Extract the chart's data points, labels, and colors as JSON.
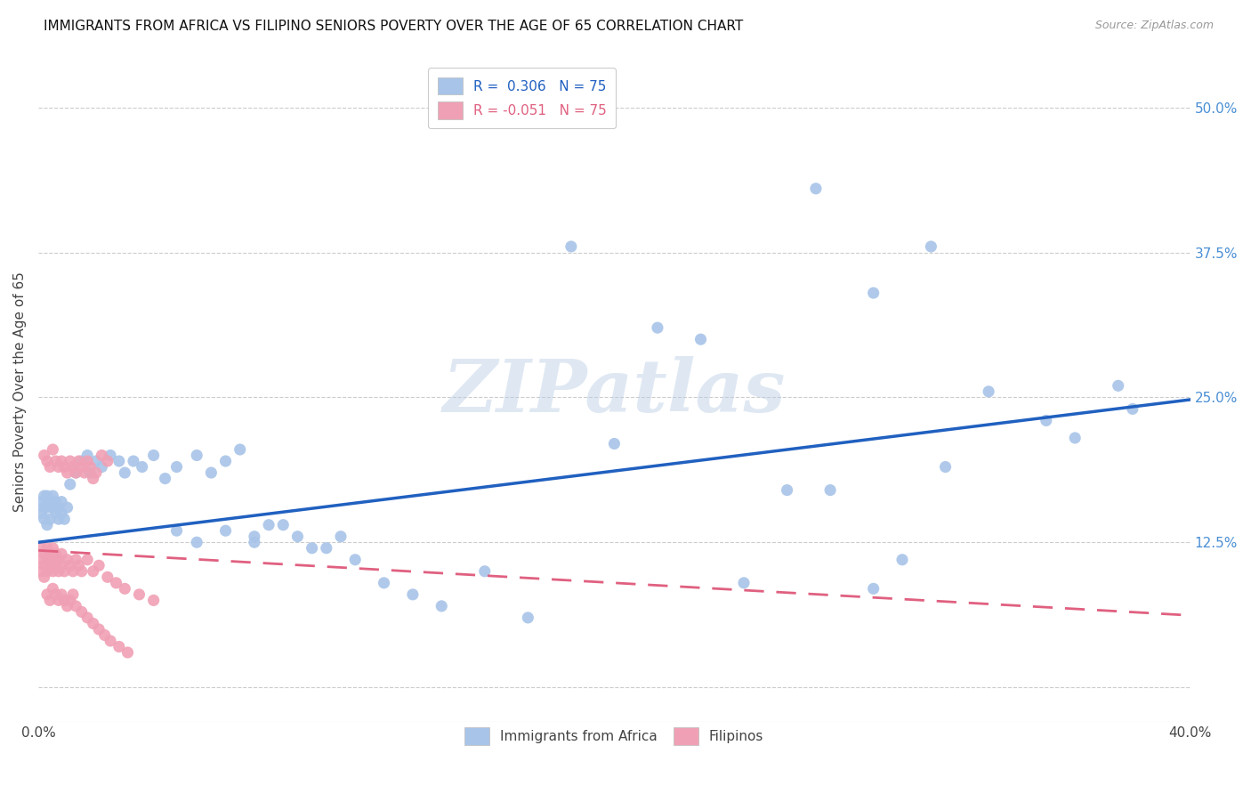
{
  "title": "IMMIGRANTS FROM AFRICA VS FILIPINO SENIORS POVERTY OVER THE AGE OF 65 CORRELATION CHART",
  "source": "Source: ZipAtlas.com",
  "ylabel": "Seniors Poverty Over the Age of 65",
  "xlim": [
    0.0,
    0.4
  ],
  "ylim": [
    -0.03,
    0.54
  ],
  "ytick_vals": [
    0.0,
    0.125,
    0.25,
    0.375,
    0.5
  ],
  "ytick_labels": [
    "",
    "12.5%",
    "25.0%",
    "37.5%",
    "50.0%"
  ],
  "xtick_vals": [
    0.0,
    0.05,
    0.1,
    0.15,
    0.2,
    0.25,
    0.3,
    0.35,
    0.4
  ],
  "xtick_labels": [
    "0.0%",
    "",
    "",
    "",
    "",
    "",
    "",
    "",
    "40.0%"
  ],
  "legend_r_africa": "R =  0.306",
  "legend_n_africa": "N = 75",
  "legend_r_filipino": "R = -0.051",
  "legend_n_filipino": "N = 75",
  "africa_color": "#a8c4e8",
  "filipino_color": "#f0a0b4",
  "africa_line_color": "#2060c0",
  "filipino_line_color": "#e06080",
  "watermark": "ZIPatlas",
  "africa_line_x": [
    0.0,
    0.4
  ],
  "africa_line_y": [
    0.125,
    0.248
  ],
  "filipino_line_x": [
    0.0,
    0.4
  ],
  "filipino_line_y": [
    0.118,
    0.062
  ],
  "africa_x": [
    0.001,
    0.001,
    0.002,
    0.002,
    0.002,
    0.003,
    0.003,
    0.003,
    0.004,
    0.004,
    0.005,
    0.005,
    0.006,
    0.006,
    0.007,
    0.007,
    0.008,
    0.008,
    0.009,
    0.01,
    0.011,
    0.012,
    0.013,
    0.015,
    0.017,
    0.018,
    0.02,
    0.022,
    0.025,
    0.028,
    0.03,
    0.033,
    0.036,
    0.04,
    0.044,
    0.048,
    0.055,
    0.06,
    0.065,
    0.07,
    0.075,
    0.08,
    0.09,
    0.1,
    0.11,
    0.12,
    0.13,
    0.14,
    0.155,
    0.17,
    0.185,
    0.2,
    0.215,
    0.23,
    0.245,
    0.26,
    0.275,
    0.29,
    0.3,
    0.315,
    0.27,
    0.29,
    0.31,
    0.33,
    0.35,
    0.36,
    0.375,
    0.38,
    0.048,
    0.055,
    0.065,
    0.075,
    0.085,
    0.095,
    0.105
  ],
  "africa_y": [
    0.15,
    0.16,
    0.145,
    0.155,
    0.165,
    0.14,
    0.155,
    0.165,
    0.145,
    0.16,
    0.155,
    0.165,
    0.15,
    0.16,
    0.145,
    0.155,
    0.15,
    0.16,
    0.145,
    0.155,
    0.175,
    0.19,
    0.185,
    0.195,
    0.2,
    0.185,
    0.195,
    0.19,
    0.2,
    0.195,
    0.185,
    0.195,
    0.19,
    0.2,
    0.18,
    0.19,
    0.2,
    0.185,
    0.195,
    0.205,
    0.13,
    0.14,
    0.13,
    0.12,
    0.11,
    0.09,
    0.08,
    0.07,
    0.1,
    0.06,
    0.38,
    0.21,
    0.31,
    0.3,
    0.09,
    0.17,
    0.17,
    0.085,
    0.11,
    0.19,
    0.43,
    0.34,
    0.38,
    0.255,
    0.23,
    0.215,
    0.26,
    0.24,
    0.135,
    0.125,
    0.135,
    0.125,
    0.14,
    0.12,
    0.13
  ],
  "filipino_x": [
    0.001,
    0.001,
    0.001,
    0.002,
    0.002,
    0.002,
    0.003,
    0.003,
    0.003,
    0.004,
    0.004,
    0.005,
    0.005,
    0.005,
    0.006,
    0.006,
    0.007,
    0.007,
    0.008,
    0.008,
    0.009,
    0.01,
    0.011,
    0.012,
    0.013,
    0.014,
    0.015,
    0.017,
    0.019,
    0.021,
    0.024,
    0.027,
    0.03,
    0.035,
    0.04,
    0.002,
    0.003,
    0.004,
    0.005,
    0.006,
    0.007,
    0.008,
    0.009,
    0.01,
    0.011,
    0.012,
    0.013,
    0.014,
    0.015,
    0.016,
    0.017,
    0.018,
    0.019,
    0.02,
    0.022,
    0.024,
    0.003,
    0.004,
    0.005,
    0.006,
    0.007,
    0.008,
    0.009,
    0.01,
    0.011,
    0.012,
    0.013,
    0.015,
    0.017,
    0.019,
    0.021,
    0.023,
    0.025,
    0.028,
    0.031
  ],
  "filipino_y": [
    0.11,
    0.1,
    0.12,
    0.105,
    0.115,
    0.095,
    0.11,
    0.1,
    0.12,
    0.105,
    0.115,
    0.1,
    0.11,
    0.12,
    0.105,
    0.115,
    0.1,
    0.11,
    0.105,
    0.115,
    0.1,
    0.11,
    0.105,
    0.1,
    0.11,
    0.105,
    0.1,
    0.11,
    0.1,
    0.105,
    0.095,
    0.09,
    0.085,
    0.08,
    0.075,
    0.2,
    0.195,
    0.19,
    0.205,
    0.195,
    0.19,
    0.195,
    0.19,
    0.185,
    0.195,
    0.19,
    0.185,
    0.195,
    0.19,
    0.185,
    0.195,
    0.19,
    0.18,
    0.185,
    0.2,
    0.195,
    0.08,
    0.075,
    0.085,
    0.08,
    0.075,
    0.08,
    0.075,
    0.07,
    0.075,
    0.08,
    0.07,
    0.065,
    0.06,
    0.055,
    0.05,
    0.045,
    0.04,
    0.035,
    0.03
  ]
}
